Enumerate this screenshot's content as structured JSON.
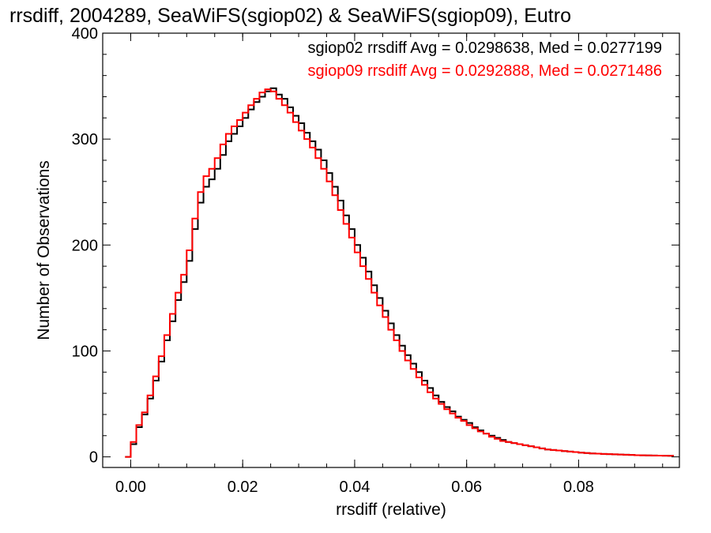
{
  "chart_data": {
    "type": "line",
    "subtype": "step-histogram",
    "title": "rrsdiff, 2004289, SeaWiFS(sgiop02) & SeaWiFS(sgiop09), Eutro",
    "xlabel": "rrsdiff (relative)",
    "ylabel": "Number of Observations",
    "xlim": [
      -0.005,
      0.098
    ],
    "ylim": [
      -10,
      400
    ],
    "x_ticks": [
      "0.00",
      "0.02",
      "0.04",
      "0.06",
      "0.08"
    ],
    "x_tick_values": [
      0.0,
      0.02,
      0.04,
      0.06,
      0.08
    ],
    "y_ticks": [
      "0",
      "100",
      "200",
      "300",
      "400"
    ],
    "y_tick_values": [
      0,
      100,
      200,
      300,
      400
    ],
    "grid": false,
    "legend_position": "top-right",
    "legend": [
      "sgiop02 rrsdiff Avg = 0.0298638, Med = 0.0277199",
      "sgiop09 rrsdiff Avg = 0.0292888, Med = 0.0271486"
    ],
    "x": [
      -0.0005,
      0.0005,
      0.0015,
      0.0025,
      0.0035,
      0.0045,
      0.0055,
      0.0065,
      0.0075,
      0.0085,
      0.0095,
      0.0105,
      0.0115,
      0.0125,
      0.0135,
      0.0145,
      0.0155,
      0.0165,
      0.0175,
      0.0185,
      0.0195,
      0.0205,
      0.0215,
      0.0225,
      0.0235,
      0.0245,
      0.0255,
      0.0265,
      0.0275,
      0.0285,
      0.0295,
      0.0305,
      0.0315,
      0.0325,
      0.0335,
      0.0345,
      0.0355,
      0.0365,
      0.0375,
      0.0385,
      0.0395,
      0.0405,
      0.0415,
      0.0425,
      0.0435,
      0.0445,
      0.0455,
      0.0465,
      0.0475,
      0.0485,
      0.0495,
      0.0505,
      0.0515,
      0.0525,
      0.0535,
      0.0545,
      0.0555,
      0.0565,
      0.0575,
      0.0585,
      0.0595,
      0.0605,
      0.0615,
      0.0625,
      0.0635,
      0.0645,
      0.0655,
      0.0665,
      0.0675,
      0.0685,
      0.0695,
      0.0705,
      0.0715,
      0.0725,
      0.0735,
      0.0745,
      0.0755,
      0.0765,
      0.0775,
      0.0785,
      0.0795,
      0.0805,
      0.0815,
      0.0825,
      0.0835,
      0.0845,
      0.0855,
      0.0865,
      0.0875,
      0.0885,
      0.0895,
      0.0905,
      0.0915,
      0.0925,
      0.0935,
      0.0945,
      0.0955,
      0.0965
    ],
    "series": [
      {
        "name": "sgiop02",
        "color": "#000000",
        "values": [
          0,
          12,
          28,
          40,
          55,
          72,
          90,
          110,
          128,
          148,
          165,
          185,
          215,
          240,
          255,
          262,
          272,
          285,
          298,
          305,
          312,
          320,
          328,
          335,
          340,
          345,
          348,
          342,
          338,
          330,
          322,
          315,
          306,
          298,
          290,
          280,
          268,
          255,
          242,
          228,
          215,
          200,
          188,
          175,
          162,
          150,
          138,
          126,
          115,
          105,
          96,
          88,
          80,
          72,
          65,
          58,
          52,
          47,
          43,
          38,
          35,
          32,
          28,
          25,
          22,
          20,
          18,
          16,
          14,
          13,
          12,
          11,
          10,
          9,
          8,
          7,
          6.5,
          6,
          5.5,
          5,
          4.5,
          4,
          3.6,
          3.2,
          3,
          2.8,
          2.6,
          2.4,
          2.2,
          2,
          1.8,
          1.6,
          1.5,
          1.4,
          1.3,
          1.2,
          1.1,
          1
        ]
      },
      {
        "name": "sgiop09",
        "color": "#ff0000",
        "values": [
          0,
          14,
          30,
          42,
          58,
          76,
          95,
          115,
          135,
          155,
          172,
          195,
          225,
          250,
          265,
          272,
          282,
          295,
          305,
          312,
          318,
          325,
          332,
          338,
          344,
          347,
          345,
          338,
          332,
          325,
          316,
          308,
          300,
          292,
          282,
          272,
          260,
          247,
          233,
          220,
          207,
          193,
          180,
          168,
          155,
          143,
          132,
          120,
          110,
          100,
          91,
          83,
          75,
          68,
          61,
          55,
          50,
          45,
          41,
          37,
          34,
          30,
          27,
          24,
          22,
          19,
          17,
          15,
          14,
          13,
          12,
          11,
          10,
          9,
          8,
          7,
          6.5,
          6,
          5.5,
          5,
          4.5,
          4,
          3.6,
          3.2,
          3,
          2.8,
          2.6,
          2.4,
          2.2,
          2,
          1.8,
          1.6,
          1.5,
          1.4,
          1.3,
          1.2,
          1.1,
          1
        ]
      }
    ]
  }
}
